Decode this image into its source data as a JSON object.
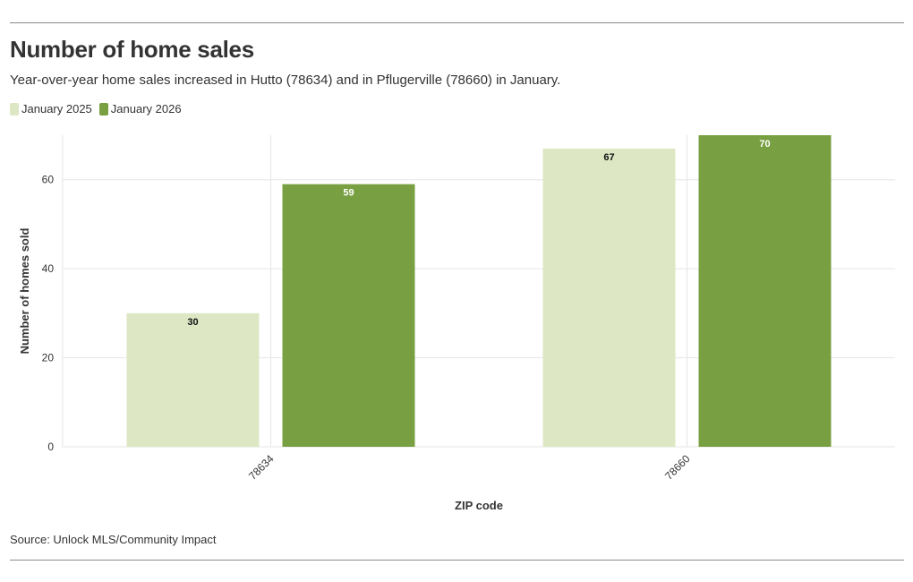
{
  "header": {
    "title": "Number of home sales",
    "subtitle": "Year-over-year home sales increased in Hutto (78634) and in Pflugerville (78660) in January."
  },
  "footer": {
    "source": "Source: Unlock MLS/Community Impact"
  },
  "colors": {
    "series_2025": "#dde7c4",
    "series_2026": "#78a042",
    "grid": "#e6e6e6",
    "text": "#333333"
  },
  "chart_data": {
    "type": "bar",
    "title": "Number of home sales",
    "xlabel": "ZIP code",
    "ylabel": "Number of homes sold",
    "categories": [
      "78634",
      "78660"
    ],
    "series": [
      {
        "name": "January 2025",
        "values": [
          30,
          67
        ],
        "color": "#dde7c4",
        "label_color": "#111111"
      },
      {
        "name": "January 2026",
        "values": [
          59,
          70
        ],
        "color": "#78a042",
        "label_color": "#ffffff"
      }
    ],
    "ylim": [
      0,
      70
    ],
    "yticks": [
      0,
      20,
      40,
      60
    ],
    "grid": true,
    "legend": "top-left"
  }
}
